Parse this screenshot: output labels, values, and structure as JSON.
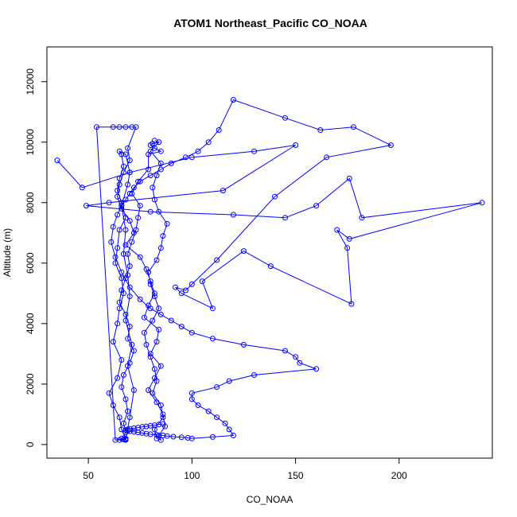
{
  "chart_data": {
    "type": "line",
    "title": "ATOM1 Northeast_Pacific CO_NOAA",
    "xlabel": "CO_NOAA",
    "ylabel": "Altitude (m)",
    "xlim": [
      30,
      245
    ],
    "ylim": [
      -450,
      13150
    ],
    "xticks": [
      50,
      100,
      150,
      200
    ],
    "yticks": [
      0,
      2000,
      4000,
      6000,
      8000,
      10000,
      12000
    ],
    "grid": false,
    "legend": "none",
    "marker": "open-circle",
    "color": "#0000ff",
    "series": [
      {
        "x": [
          68,
          70,
          72,
          69,
          71,
          68,
          70,
          69,
          67,
          68,
          66,
          69,
          70,
          68,
          65,
          66,
          67,
          65,
          64,
          66,
          68,
          65,
          64,
          63,
          66,
          67,
          65,
          64,
          62,
          66,
          64,
          60,
          62,
          65,
          66,
          68,
          63,
          54,
          62,
          65,
          68,
          71,
          73,
          69,
          70,
          67,
          65,
          64,
          66,
          70,
          72,
          68,
          75,
          78,
          80,
          82,
          79,
          77,
          84,
          83,
          80,
          85,
          82,
          79,
          83,
          86,
          87,
          84,
          85,
          83,
          82,
          86,
          85,
          81,
          83,
          82,
          80,
          78,
          77,
          81,
          84,
          82,
          80,
          79,
          83,
          85,
          86,
          88,
          84,
          82,
          81,
          83,
          85,
          80,
          84,
          82,
          84,
          81,
          80,
          82,
          85,
          79,
          79,
          74,
          71,
          75,
          74,
          73,
          71,
          69,
          70,
          68,
          66,
          65,
          68,
          70,
          69,
          72,
          70,
          67,
          66,
          68,
          69,
          67,
          68,
          66,
          65,
          67,
          68
        ],
        "y": [
          150,
          900,
          1800,
          2600,
          3300,
          4100,
          4900,
          5600,
          6300,
          7100,
          7900,
          8600,
          9000,
          9600,
          9700,
          9600,
          9200,
          8800,
          8400,
          8000,
          7500,
          7100,
          6500,
          6000,
          5500,
          5000,
          4500,
          4000,
          3400,
          2800,
          2200,
          1700,
          1300,
          900,
          500,
          200,
          150,
          10500,
          10500,
          10500,
          10500,
          10500,
          10500,
          9800,
          9400,
          9000,
          8600,
          8200,
          7800,
          7400,
          7000,
          6600,
          6200,
          5800,
          5400,
          5000,
          4600,
          4200,
          3800,
          3400,
          3000,
          2600,
          2200,
          1800,
          1400,
          1000,
          600,
          300,
          150,
          200,
          500,
          900,
          1300,
          1700,
          2100,
          2500,
          2900,
          3300,
          3700,
          4100,
          4500,
          4900,
          5300,
          5700,
          6100,
          6500,
          6900,
          7300,
          7700,
          8100,
          8500,
          8900,
          9300,
          9700,
          10000,
          10050,
          10000,
          9950,
          9900,
          9800,
          9700,
          9600,
          9100,
          8700,
          8300,
          7900,
          7500,
          7100,
          6700,
          6300,
          5900,
          5500,
          5100,
          4700,
          4300,
          3900,
          3500,
          3100,
          2700,
          2300,
          1900,
          1500,
          1100,
          700,
          400,
          200,
          150,
          160,
          170
        ]
      },
      {
        "x": [
          35,
          47,
          70,
          100,
          130,
          150,
          115,
          60,
          49,
          80,
          120,
          145,
          160,
          176,
          182,
          240,
          176,
          170,
          175,
          177,
          138,
          125,
          105,
          110,
          95,
          92,
          97,
          100,
          112,
          140,
          165,
          196,
          178,
          162,
          145,
          120,
          113,
          108,
          103,
          97,
          90,
          85,
          80,
          75,
          72,
          70,
          68,
          66,
          64,
          62,
          61,
          63,
          66,
          70,
          75,
          80,
          85,
          90,
          95,
          100,
          110,
          125,
          145,
          150,
          152,
          160,
          130,
          118,
          112,
          100,
          100,
          103,
          108,
          112,
          116,
          118,
          120,
          110,
          100,
          98,
          95,
          91,
          88,
          86,
          83,
          80,
          78,
          76,
          74,
          72,
          70,
          69,
          68,
          69,
          70,
          72,
          74,
          76,
          78,
          80,
          82,
          84,
          86
        ],
        "y": [
          9400,
          8500,
          9000,
          9500,
          9700,
          9900,
          8400,
          8000,
          7900,
          7700,
          7600,
          7500,
          7900,
          8800,
          7500,
          8000,
          6800,
          7100,
          6500,
          4650,
          5900,
          6400,
          5400,
          4500,
          5000,
          5200,
          5100,
          5300,
          6100,
          8200,
          9500,
          9900,
          10500,
          10400,
          10800,
          11400,
          10400,
          10000,
          9700,
          9500,
          9300,
          9100,
          8900,
          8700,
          8500,
          8300,
          8100,
          7900,
          7600,
          7200,
          6700,
          6200,
          5700,
          5200,
          4800,
          4500,
          4300,
          4100,
          3900,
          3700,
          3500,
          3300,
          3100,
          2900,
          2700,
          2500,
          2300,
          2100,
          1900,
          1700,
          1500,
          1300,
          1100,
          900,
          700,
          500,
          300,
          250,
          200,
          220,
          240,
          260,
          280,
          300,
          320,
          340,
          360,
          380,
          400,
          420,
          440,
          460,
          480,
          500,
          520,
          540,
          560,
          580,
          600,
          620,
          640,
          660,
          680
        ]
      }
    ]
  }
}
